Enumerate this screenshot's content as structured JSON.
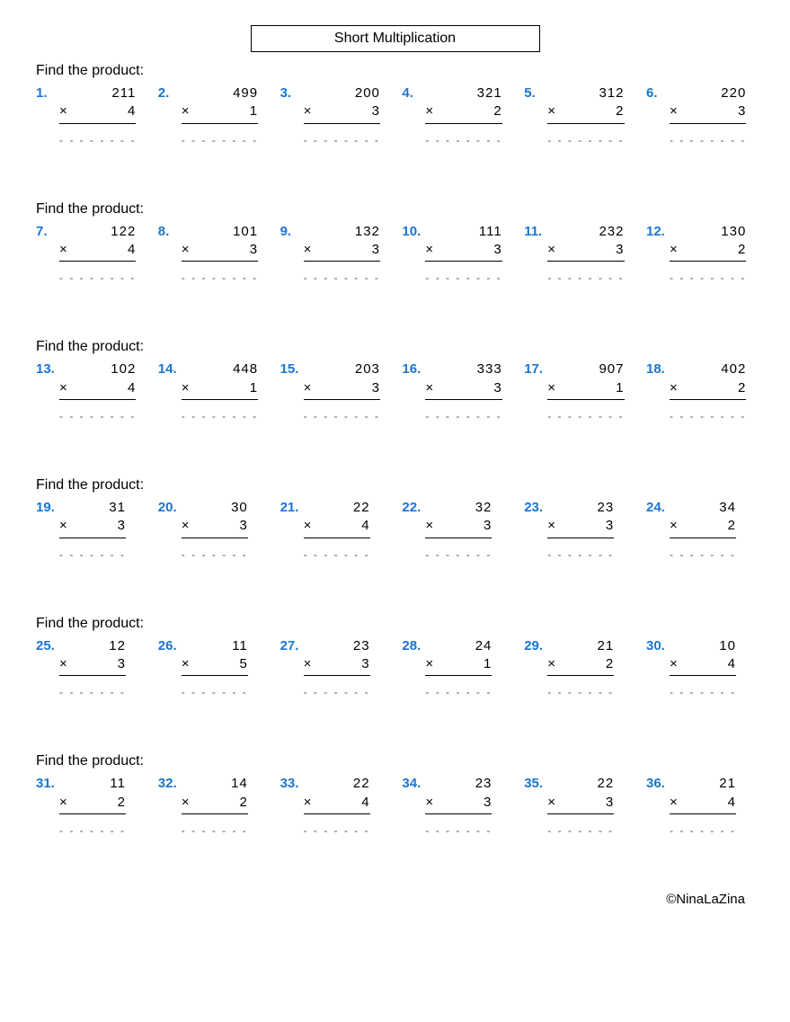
{
  "title": "Short Multiplication",
  "instruction": "Find the product:",
  "mult_symbol": "×",
  "answer_dashes_3d": "- - - - - - - -",
  "answer_dashes_2d": "- - - - - - -",
  "footer": "©NinaLaZina",
  "colors": {
    "number_label": "#1a75d1",
    "text": "#000000",
    "background": "#ffffff"
  },
  "sections": [
    {
      "digits": 3,
      "problems": [
        {
          "n": "1.",
          "a": "211",
          "b": "4"
        },
        {
          "n": "2.",
          "a": "499",
          "b": "1"
        },
        {
          "n": "3.",
          "a": "200",
          "b": "3"
        },
        {
          "n": "4.",
          "a": "321",
          "b": "2"
        },
        {
          "n": "5.",
          "a": "312",
          "b": "2"
        },
        {
          "n": "6.",
          "a": "220",
          "b": "3"
        }
      ]
    },
    {
      "digits": 3,
      "problems": [
        {
          "n": "7.",
          "a": "122",
          "b": "4"
        },
        {
          "n": "8.",
          "a": "101",
          "b": "3"
        },
        {
          "n": "9.",
          "a": "132",
          "b": "3"
        },
        {
          "n": "10.",
          "a": "111",
          "b": "3"
        },
        {
          "n": "11.",
          "a": "232",
          "b": "3"
        },
        {
          "n": "12.",
          "a": "130",
          "b": "2"
        }
      ]
    },
    {
      "digits": 3,
      "problems": [
        {
          "n": "13.",
          "a": "102",
          "b": "4"
        },
        {
          "n": "14.",
          "a": "448",
          "b": "1"
        },
        {
          "n": "15.",
          "a": "203",
          "b": "3"
        },
        {
          "n": "16.",
          "a": "333",
          "b": "3"
        },
        {
          "n": "17.",
          "a": "907",
          "b": "1"
        },
        {
          "n": "18.",
          "a": "402",
          "b": "2"
        }
      ]
    },
    {
      "digits": 2,
      "problems": [
        {
          "n": "19.",
          "a": "31",
          "b": "3"
        },
        {
          "n": "20.",
          "a": "30",
          "b": "3"
        },
        {
          "n": "21.",
          "a": "22",
          "b": "4"
        },
        {
          "n": "22.",
          "a": "32",
          "b": "3"
        },
        {
          "n": "23.",
          "a": "23",
          "b": "3"
        },
        {
          "n": "24.",
          "a": "34",
          "b": "2"
        }
      ]
    },
    {
      "digits": 2,
      "problems": [
        {
          "n": "25.",
          "a": "12",
          "b": "3"
        },
        {
          "n": "26.",
          "a": "11",
          "b": "5"
        },
        {
          "n": "27.",
          "a": "23",
          "b": "3"
        },
        {
          "n": "28.",
          "a": "24",
          "b": "1"
        },
        {
          "n": "29.",
          "a": "21",
          "b": "2"
        },
        {
          "n": "30.",
          "a": "10",
          "b": "4"
        }
      ]
    },
    {
      "digits": 2,
      "problems": [
        {
          "n": "31.",
          "a": "11",
          "b": "2"
        },
        {
          "n": "32.",
          "a": "14",
          "b": "2"
        },
        {
          "n": "33.",
          "a": "22",
          "b": "4"
        },
        {
          "n": "34.",
          "a": "23",
          "b": "3"
        },
        {
          "n": "35.",
          "a": "22",
          "b": "3"
        },
        {
          "n": "36.",
          "a": "21",
          "b": "4"
        }
      ]
    }
  ]
}
